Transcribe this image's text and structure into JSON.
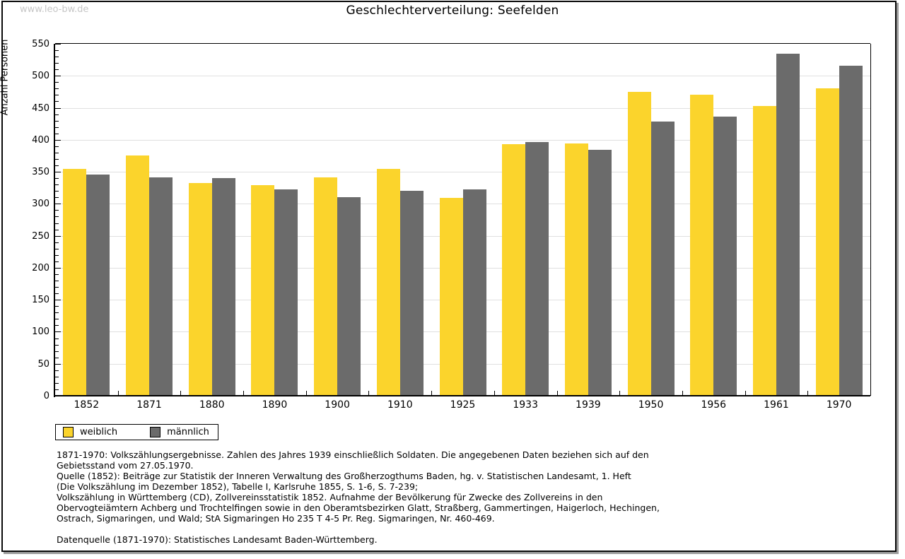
{
  "watermark": "www.leo-bw.de",
  "title": "Geschlechterverteilung: Seefelden",
  "chart_data": {
    "type": "bar",
    "title": "Geschlechterverteilung: Seefelden",
    "ylabel": "Anzahl Personen",
    "xlabel": "",
    "categories": [
      "1852",
      "1871",
      "1880",
      "1890",
      "1900",
      "1910",
      "1925",
      "1933",
      "1939",
      "1950",
      "1956",
      "1961",
      "1970"
    ],
    "series": [
      {
        "name": "weiblich",
        "color": "#fbd42c",
        "values": [
          354,
          376,
          332,
          329,
          341,
          354,
          309,
          393,
          394,
          475,
          471,
          453,
          480
        ]
      },
      {
        "name": "männlich",
        "color": "#6b6b6b",
        "values": [
          346,
          341,
          340,
          323,
          310,
          320,
          322,
          397,
          384,
          428,
          436,
          535,
          516
        ]
      }
    ],
    "ylim": [
      0,
      550
    ],
    "ytick_major_step": 50,
    "ytick_minor_step": 10,
    "grid": true,
    "gridline_color": "#e0e0e0",
    "legend_position": "bottom-left"
  },
  "legend": {
    "items": [
      {
        "label": "weiblich",
        "color": "#fbd42c"
      },
      {
        "label": "männlich",
        "color": "#6b6b6b"
      }
    ]
  },
  "footnotes": {
    "lines": [
      "1871-1970: Volkszählungsergebnisse. Zahlen des Jahres 1939 einschließlich Soldaten. Die angegebenen Daten beziehen sich auf den",
      "Gebietsstand vom 27.05.1970.",
      "Quelle (1852): Beiträge zur Statistik der Inneren Verwaltung des Großherzogthums Baden, hg. v. Statistischen Landesamt, 1. Heft",
      "(Die Volkszählung im Dezember 1852), Tabelle I, Karlsruhe 1855, S. 1-6, S. 7-239;",
      "Volkszählung in Württemberg (CD), Zollvereinsstatistik 1852. Aufnahme der Bevölkerung für Zwecke des Zollvereins in den",
      "Obervogteiämtern Achberg und Trochtelfingen sowie in den Oberamtsbezirken Glatt, Straßberg, Gammertingen, Haigerloch, Hechingen,",
      "Ostrach, Sigmaringen, und Wald; StA Sigmaringen Ho 235 T 4-5 Pr. Reg. Sigmaringen, Nr. 460-469."
    ],
    "datasource": "Datenquelle (1871-1970): Statistisches Landesamt Baden-Württemberg."
  }
}
